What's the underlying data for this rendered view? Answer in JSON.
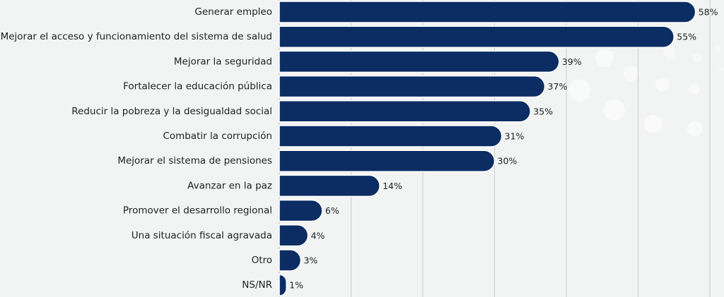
{
  "chart_data": {
    "type": "bar",
    "orientation": "horizontal",
    "categories": [
      "Generar empleo",
      "Mejorar el acceso y funcionamiento del sistema de salud",
      "Mejorar la seguridad",
      "Fortalecer la educación pública",
      "Reducir la pobreza y la desigualdad social",
      "Combatir la corrupción",
      "Mejorar el sistema de pensiones",
      "Avanzar en la paz",
      "Promover el desarrollo regional",
      "Una situación fiscal agravada",
      "Otro",
      "NS/NR"
    ],
    "values": [
      58,
      55,
      39,
      37,
      35,
      31,
      30,
      14,
      6,
      4,
      3,
      1
    ],
    "value_labels": [
      "58%",
      "55%",
      "39%",
      "37%",
      "35%",
      "31%",
      "30%",
      "14%",
      "6%",
      "4%",
      "3%",
      "1%"
    ],
    "xlim": [
      0,
      60
    ],
    "grid": true,
    "legend": "none",
    "title": "",
    "xlabel": "",
    "ylabel": ""
  },
  "colors": {
    "bar": "#0b2d63",
    "bar_outline": "#ffffff",
    "text": "#1f1f1f",
    "grid": "#c9cdd1",
    "background": "#f2f3f3",
    "decor_dot": "#ffffff"
  }
}
